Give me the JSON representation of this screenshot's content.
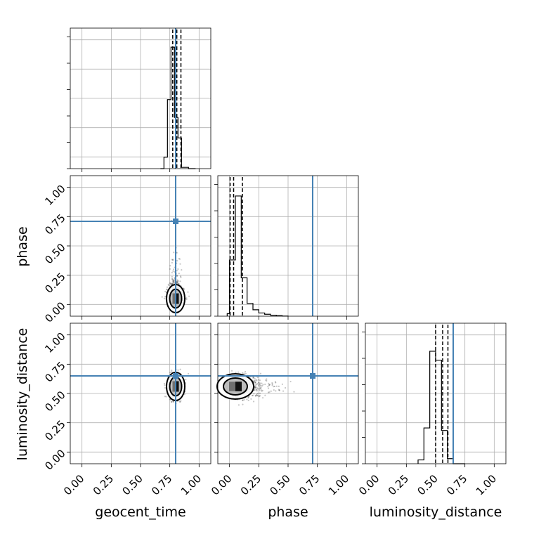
{
  "chart_data": {
    "type": "corner",
    "parameters": [
      "geocent_time",
      "phase",
      "luminosity_distance"
    ],
    "axis_range": [
      -0.1,
      1.1
    ],
    "tick_labels": [
      "0.00",
      "0.25",
      "0.50",
      "0.75",
      "1.00"
    ],
    "tick_values": [
      0.0,
      0.25,
      0.5,
      0.75,
      1.0
    ],
    "grid": true,
    "colors": {
      "truth": "#4682b4",
      "histogram": "#000000",
      "samples": "#000000",
      "grid": "#b0b0b0"
    },
    "truths": {
      "geocent_time": 0.8,
      "phase": 0.71,
      "luminosity_distance": 0.65
    },
    "quantiles": {
      "geocent_time": [
        0.775,
        0.81,
        0.845
      ],
      "phase": [
        0.005,
        0.035,
        0.11
      ],
      "luminosity_distance": [
        0.5,
        0.56,
        0.605
      ]
    },
    "histograms": {
      "geocent_time": {
        "edges": [
          0.67,
          0.7,
          0.73,
          0.76,
          0.79,
          0.82,
          0.85,
          0.88,
          0.91,
          0.94,
          0.97
        ],
        "counts": [
          0,
          0.09,
          0.54,
          0.95,
          0.4,
          0.24,
          0.01,
          0.01,
          0.0,
          0.0
        ]
      },
      "phase": {
        "edges": [
          -0.02,
          0.0,
          0.05,
          0.1,
          0.15,
          0.2,
          0.25,
          0.3,
          0.35,
          0.4,
          0.45,
          0.5
        ],
        "counts": [
          0.02,
          0.44,
          0.94,
          0.3,
          0.1,
          0.05,
          0.025,
          0.015,
          0.008,
          0.004,
          0.001
        ]
      },
      "luminosity_distance": {
        "edges": [
          0.35,
          0.4,
          0.45,
          0.5,
          0.55,
          0.6,
          0.65,
          0.7,
          0.75
        ],
        "counts": [
          0.03,
          0.28,
          0.88,
          0.81,
          0.26,
          0.04,
          0.0,
          0.0
        ]
      }
    },
    "joint": {
      "phase_vs_geocent_time": {
        "center": [
          0.8,
          0.05
        ],
        "spread": [
          0.03,
          0.05
        ]
      },
      "luminosity_distance_vs_geocent_time": {
        "center": [
          0.8,
          0.56
        ],
        "spread": [
          0.03,
          0.05
        ]
      },
      "luminosity_distance_vs_phase": {
        "center": [
          0.05,
          0.56
        ],
        "spread": [
          0.06,
          0.045
        ]
      }
    }
  }
}
